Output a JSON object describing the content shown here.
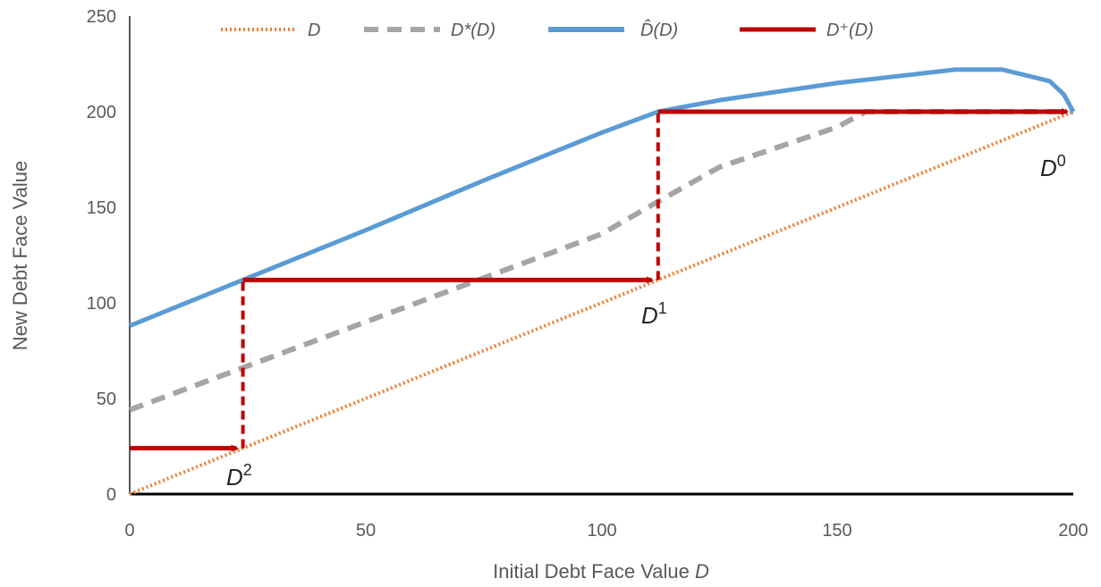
{
  "chart_data": {
    "type": "line",
    "xlabel": "Initial Debt Face Value",
    "xlabel_var": "D",
    "ylabel": "New Debt Face Value",
    "xlim": [
      0,
      200
    ],
    "ylim": [
      0,
      250
    ],
    "x_ticks": [
      "0",
      "50",
      "100",
      "150",
      "200"
    ],
    "y_ticks": [
      "0",
      "50",
      "100",
      "150",
      "200",
      "250"
    ],
    "grid": false,
    "legend_position": "top",
    "series": [
      {
        "name": "D",
        "style": "dotted",
        "color": "#ED7D31",
        "x": [
          0,
          200
        ],
        "y": [
          0,
          200
        ]
      },
      {
        "name": "D*(D)",
        "style": "dashed",
        "color": "#A5A5A5",
        "x": [
          0,
          25,
          50,
          75,
          100,
          112,
          125,
          150,
          156,
          175,
          200
        ],
        "y": [
          44,
          67,
          90,
          113,
          136,
          153,
          171,
          192,
          200,
          200,
          200
        ]
      },
      {
        "name": "D̂(D)",
        "style": "solid",
        "color": "#5B9BD5",
        "x": [
          0,
          25,
          50,
          75,
          100,
          112,
          125,
          150,
          175,
          185,
          195,
          198,
          200
        ],
        "y": [
          88,
          113,
          138,
          164,
          189,
          200,
          206,
          215,
          222,
          222,
          216,
          209,
          200
        ]
      },
      {
        "name": "D⁺(D)",
        "style": "solid-arrow",
        "color": "#C00000",
        "x": [
          0,
          24,
          24,
          112,
          112,
          200
        ],
        "y": [
          24,
          24,
          112,
          112,
          200,
          200
        ]
      }
    ],
    "annotations": [
      {
        "base": "D",
        "sup": "0",
        "x": 200,
        "y": 200
      },
      {
        "base": "D",
        "sup": "1",
        "x": 112,
        "y": 112
      },
      {
        "base": "D",
        "sup": "2",
        "x": 24,
        "y": 24
      }
    ]
  }
}
